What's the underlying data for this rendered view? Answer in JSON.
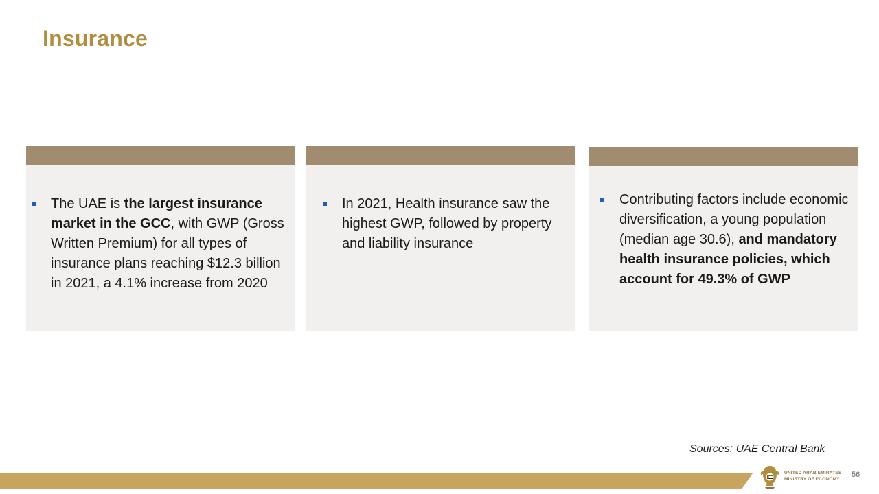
{
  "slide": {
    "title": "Insurance",
    "page_number": "56",
    "sources": "Sources: UAE Central Bank"
  },
  "cards": [
    {
      "segments": [
        {
          "text": "The UAE is ",
          "bold": false
        },
        {
          "text": "the largest insurance market in the GCC",
          "bold": true
        },
        {
          "text": ", with GWP (Gross Written Premium) for all types of insurance plans reaching $12.3 billion in 2021, a 4.1% increase from 2020",
          "bold": false
        }
      ]
    },
    {
      "segments": [
        {
          "text": "In 2021, Health insurance saw the highest GWP, followed by property and liability insurance",
          "bold": false
        }
      ]
    },
    {
      "segments": [
        {
          "text": "Contributing factors include economic diversification, a young population (median age 30.6), ",
          "bold": false
        },
        {
          "text": "and mandatory health insurance policies, which account for 49.3% of GWP",
          "bold": true
        }
      ]
    }
  ],
  "footer": {
    "ministry_line1": "UNITED ARAB EMIRATES",
    "ministry_line2": "MINISTRY OF ECONOMY",
    "logo_icon": "uae-emblem-icon"
  },
  "colors": {
    "title": "#B08D3F",
    "card_header": "#A28C6F",
    "card_bg": "#F1F0EF",
    "bullet": "#1F5FAF",
    "footer_bar": "#C8A45E"
  }
}
